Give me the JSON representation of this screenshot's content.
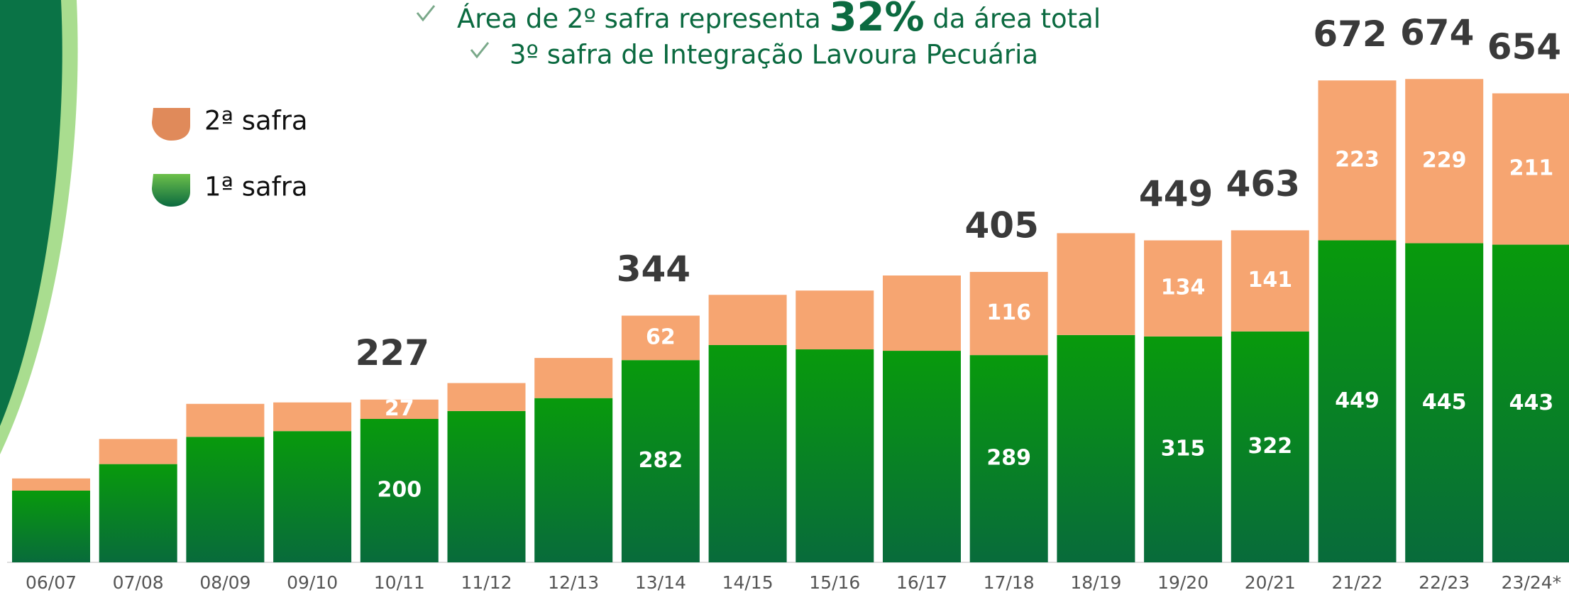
{
  "chart_data": {
    "type": "stacked-bar",
    "title_parts": [
      "Área de 2º safra representa ",
      "32%",
      " da área total"
    ],
    "subtitle": "3º safra de Integração Lavoura Pecuária",
    "categories": [
      "06/07",
      "07/08",
      "08/09",
      "09/10",
      "10/11",
      "11/12",
      "12/13",
      "13/14",
      "14/15",
      "15/16",
      "16/17",
      "17/18",
      "18/19",
      "19/20",
      "20/21",
      "21/22",
      "22/23",
      "23/24*"
    ],
    "series": [
      {
        "name": "1ª safra",
        "color": "#089a0c",
        "color_bottom": "#086b3b",
        "values": [
          100,
          137,
          175,
          183,
          200,
          211,
          229,
          282,
          303,
          297,
          295,
          289,
          317,
          315,
          322,
          449,
          445,
          443
        ],
        "value_labels": [
          null,
          null,
          null,
          null,
          "200",
          null,
          null,
          "282",
          null,
          null,
          null,
          "289",
          null,
          "315",
          "322",
          "449",
          "445",
          "443"
        ]
      },
      {
        "name": "2ª safra",
        "color": "#f6a571",
        "values": [
          17,
          35,
          46,
          40,
          27,
          39,
          56,
          62,
          70,
          82,
          105,
          116,
          142,
          134,
          141,
          223,
          229,
          211
        ],
        "value_labels": [
          null,
          null,
          null,
          null,
          "27",
          null,
          null,
          "62",
          null,
          null,
          null,
          "116",
          null,
          "134",
          "141",
          "223",
          "229",
          "211"
        ]
      }
    ],
    "totals": [
      null,
      null,
      null,
      null,
      227,
      null,
      null,
      344,
      null,
      null,
      null,
      405,
      null,
      449,
      463,
      672,
      674,
      654
    ],
    "ylim": [
      0,
      700
    ]
  }
}
